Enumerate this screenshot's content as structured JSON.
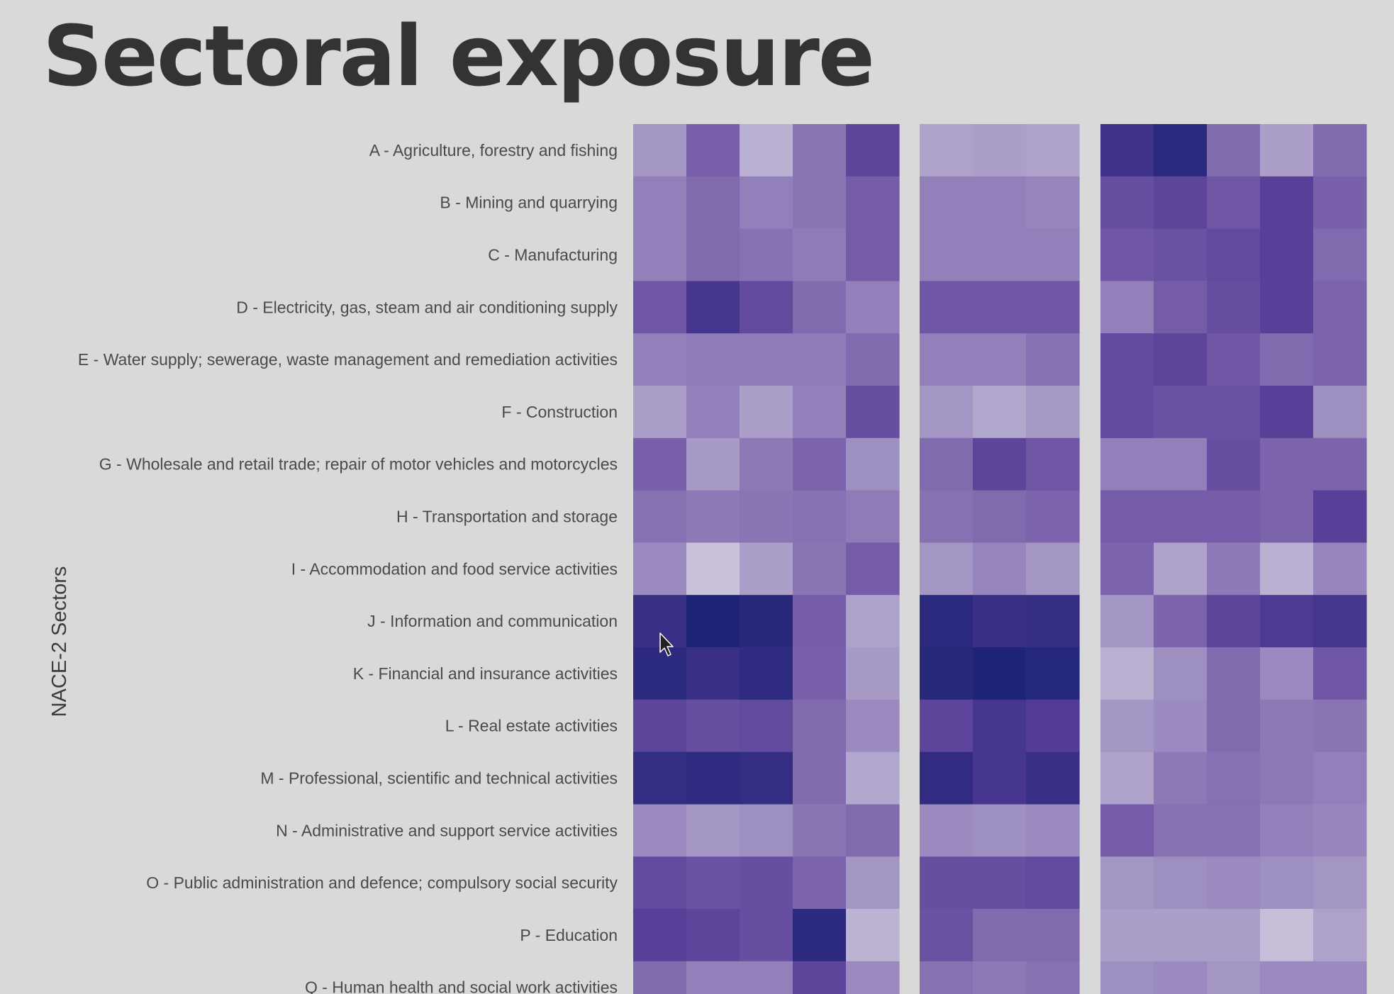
{
  "slide": {
    "title": "Sectoral exposure"
  },
  "colors": {
    "background": "#d8d9d8",
    "low": "#d9d4e4",
    "high": "#1e2476"
  },
  "chart_data": {
    "type": "heatmap",
    "ylabel": "NACE-2 Sectors",
    "value_scale": "0 = lightest, 1 = darkest",
    "rows": [
      "A - Agriculture, forestry and fishing",
      "B - Mining and quarrying",
      "C - Manufacturing",
      "D - Electricity, gas, steam and air conditioning supply",
      "E - Water supply; sewerage, waste management and remediation activities",
      "F - Construction",
      "G - Wholesale and retail trade; repair of motor vehicles and motorcycles",
      "H - Transportation and storage",
      "I - Accommodation and food service activities",
      "J - Information and communication",
      "K - Financial and insurance activities",
      "L - Real estate activities",
      "M - Professional, scientific and technical activities",
      "N - Administrative and support service activities",
      "O - Public administration and defence; compulsory social security",
      "P - Education",
      "Q - Human health and social work activities"
    ],
    "panels": [
      {
        "values": [
          [
            0.35,
            0.6,
            0.2,
            0.5,
            0.75
          ],
          [
            0.45,
            0.55,
            0.45,
            0.5,
            0.62
          ],
          [
            0.45,
            0.55,
            0.52,
            0.47,
            0.62
          ],
          [
            0.65,
            0.85,
            0.72,
            0.55,
            0.45
          ],
          [
            0.45,
            0.47,
            0.47,
            0.47,
            0.55
          ],
          [
            0.3,
            0.45,
            0.3,
            0.45,
            0.7
          ],
          [
            0.6,
            0.32,
            0.48,
            0.58,
            0.38
          ],
          [
            0.52,
            0.48,
            0.5,
            0.52,
            0.47
          ],
          [
            0.4,
            0.1,
            0.3,
            0.5,
            0.62
          ],
          [
            0.9,
            1.0,
            0.96,
            0.62,
            0.28
          ],
          [
            0.95,
            0.9,
            0.94,
            0.6,
            0.32
          ],
          [
            0.75,
            0.7,
            0.72,
            0.55,
            0.4
          ],
          [
            0.92,
            0.94,
            0.92,
            0.55,
            0.25
          ],
          [
            0.4,
            0.35,
            0.38,
            0.5,
            0.55
          ],
          [
            0.72,
            0.68,
            0.7,
            0.58,
            0.35
          ],
          [
            0.78,
            0.75,
            0.7,
            0.95,
            0.18
          ],
          [
            0.55,
            0.45,
            0.45,
            0.75,
            0.4
          ]
        ]
      },
      {
        "values": [
          [
            0.28,
            0.3,
            0.28
          ],
          [
            0.45,
            0.45,
            0.42
          ],
          [
            0.45,
            0.45,
            0.45
          ],
          [
            0.65,
            0.65,
            0.65
          ],
          [
            0.45,
            0.45,
            0.52
          ],
          [
            0.35,
            0.25,
            0.33
          ],
          [
            0.55,
            0.75,
            0.65
          ],
          [
            0.52,
            0.55,
            0.58
          ],
          [
            0.35,
            0.42,
            0.35
          ],
          [
            0.95,
            0.9,
            0.92
          ],
          [
            0.96,
            1.0,
            0.97
          ],
          [
            0.75,
            0.85,
            0.8
          ],
          [
            0.93,
            0.85,
            0.9
          ],
          [
            0.4,
            0.38,
            0.4
          ],
          [
            0.7,
            0.7,
            0.72
          ],
          [
            0.68,
            0.55,
            0.55
          ],
          [
            0.52,
            0.48,
            0.52
          ]
        ]
      },
      {
        "values": [
          [
            0.88,
            0.95,
            0.55,
            0.3,
            0.55
          ],
          [
            0.7,
            0.75,
            0.65,
            0.78,
            0.6
          ],
          [
            0.65,
            0.68,
            0.72,
            0.78,
            0.55
          ],
          [
            0.45,
            0.62,
            0.7,
            0.78,
            0.58
          ],
          [
            0.72,
            0.75,
            0.65,
            0.55,
            0.58
          ],
          [
            0.72,
            0.68,
            0.68,
            0.78,
            0.38
          ],
          [
            0.45,
            0.45,
            0.7,
            0.58,
            0.58
          ],
          [
            0.62,
            0.62,
            0.62,
            0.58,
            0.78
          ],
          [
            0.58,
            0.28,
            0.48,
            0.2,
            0.42
          ],
          [
            0.35,
            0.58,
            0.75,
            0.82,
            0.85
          ],
          [
            0.2,
            0.38,
            0.55,
            0.4,
            0.65
          ],
          [
            0.35,
            0.4,
            0.55,
            0.48,
            0.5
          ],
          [
            0.28,
            0.48,
            0.52,
            0.48,
            0.45
          ],
          [
            0.62,
            0.52,
            0.52,
            0.45,
            0.42
          ],
          [
            0.35,
            0.38,
            0.4,
            0.38,
            0.35
          ],
          [
            0.3,
            0.3,
            0.3,
            0.12,
            0.28
          ],
          [
            0.38,
            0.4,
            0.35,
            0.4,
            0.4
          ]
        ]
      }
    ]
  }
}
